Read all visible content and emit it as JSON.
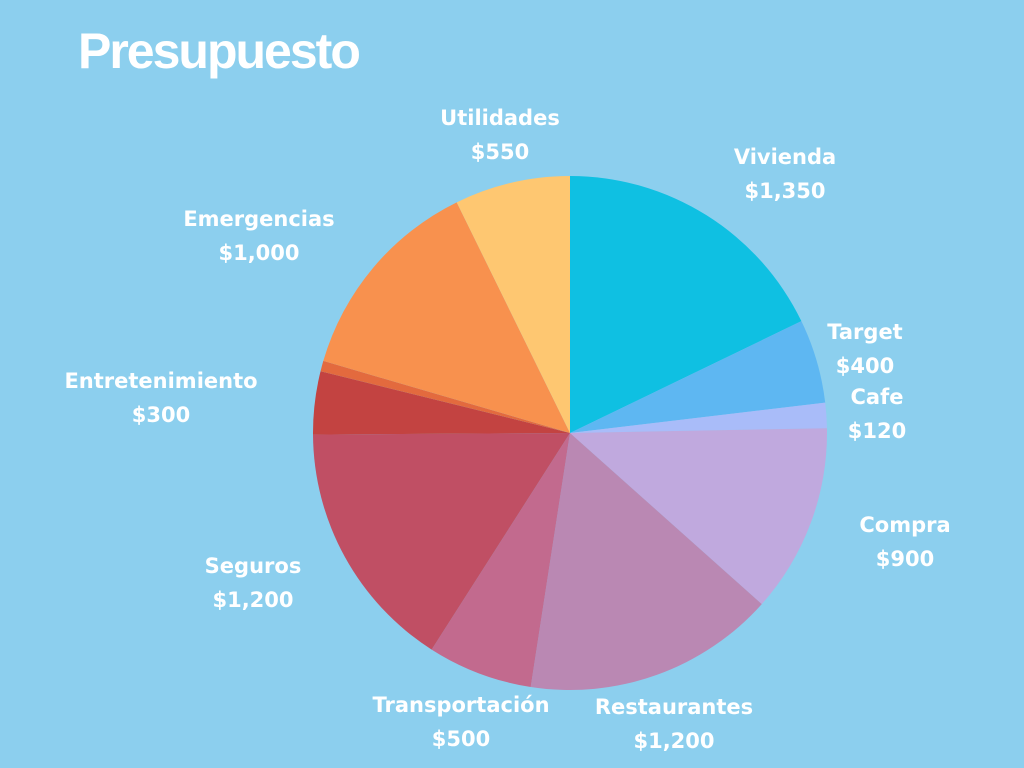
{
  "title": "Presupuesto",
  "chart_data": {
    "type": "pie",
    "title": "Presupuesto",
    "slices": [
      {
        "label": "Vivienda",
        "value_label": "$1,350",
        "value": 1350,
        "color": "#0fc0e2"
      },
      {
        "label": "Target",
        "value_label": "$400",
        "value": 400,
        "color": "#5eb7f2"
      },
      {
        "label": "Cafe",
        "value_label": "$120",
        "value": 120,
        "color": "#a9bcf9"
      },
      {
        "label": "Compra",
        "value_label": "$900",
        "value": 900,
        "color": "#c0a9de"
      },
      {
        "label": "Restaurantes",
        "value_label": "$1,200",
        "value": 1200,
        "color": "#ba88b3"
      },
      {
        "label": "Transportación",
        "value_label": "$500",
        "value": 500,
        "color": "#c26a8e"
      },
      {
        "label": "Seguros",
        "value_label": "$1,200",
        "value": 1200,
        "color": "#c04f64"
      },
      {
        "label": "Entretenimiento",
        "value_label": "$300",
        "value": 300,
        "color": "#c34341"
      },
      {
        "label": "",
        "value_label": "",
        "value": 50,
        "color": "#e36a3e"
      },
      {
        "label": "Emergencias",
        "value_label": "$1,000",
        "value": 1000,
        "color": "#f8914e"
      },
      {
        "label": "Utilidades",
        "value_label": "$550",
        "value": 550,
        "color": "#fec771"
      }
    ]
  }
}
